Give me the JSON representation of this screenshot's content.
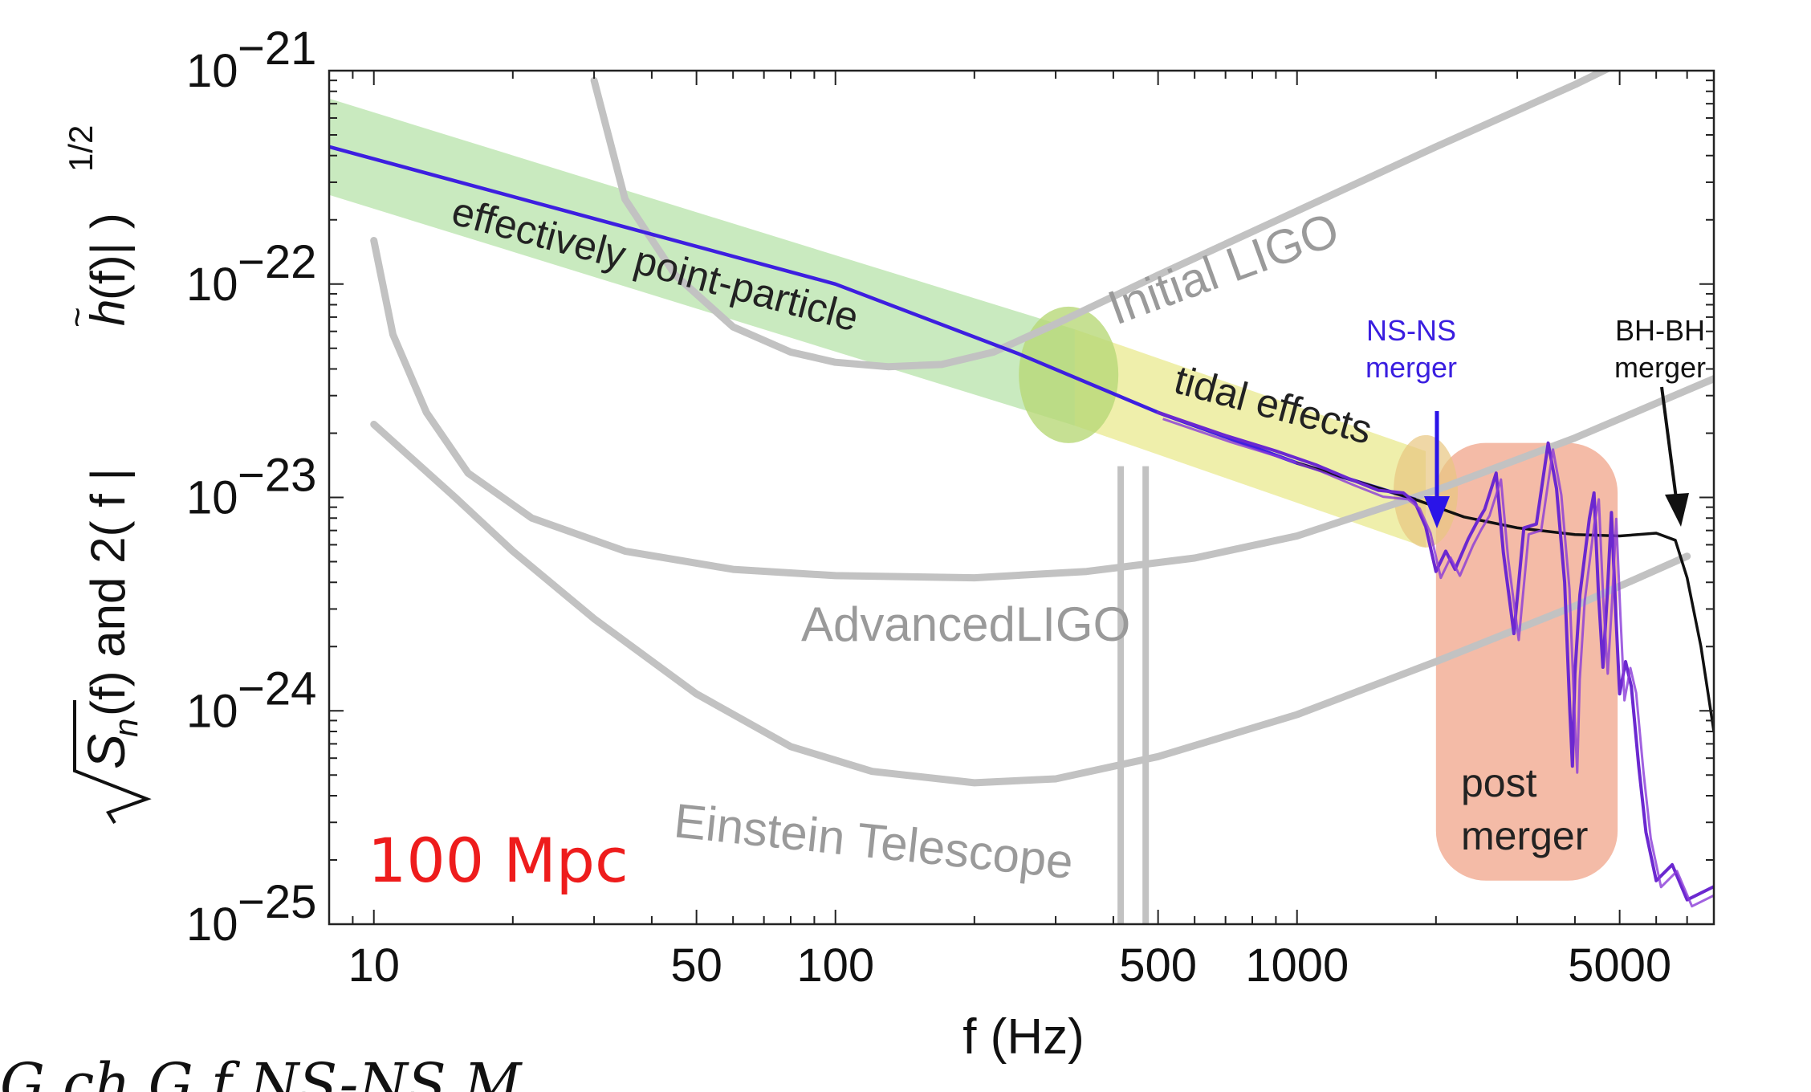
{
  "chart_data": {
    "type": "line",
    "xscale": "log",
    "yscale": "log",
    "xlim": [
      8,
      8000
    ],
    "ylim": [
      1e-25,
      1e-21
    ],
    "xticks": [
      {
        "value": 10,
        "label": "10"
      },
      {
        "value": 50,
        "label": "50"
      },
      {
        "value": 100,
        "label": "100"
      },
      {
        "value": 500,
        "label": "500"
      },
      {
        "value": 1000,
        "label": "1000"
      },
      {
        "value": 5000,
        "label": "5000"
      }
    ],
    "yticks": [
      {
        "value": 1e-25,
        "base": "10",
        "exp": "−25"
      },
      {
        "value": 1e-24,
        "base": "10",
        "exp": "−24"
      },
      {
        "value": 1e-23,
        "base": "10",
        "exp": "−23"
      },
      {
        "value": 1e-22,
        "base": "10",
        "exp": "−22"
      },
      {
        "value": 1e-21,
        "base": "10",
        "exp": "−21"
      }
    ],
    "xlabel": "f (Hz)",
    "ylabel": {
      "pre": "S",
      "sub": "n",
      "mid": "(f)  and  2( f |",
      "htilde": "h",
      "post": "(f)| )",
      "sup": "1/2"
    },
    "series": [
      {
        "name": "Initial LIGO",
        "color": "#c2c2c2",
        "points": [
          [
            30,
            9e-22
          ],
          [
            35,
            2.5e-22
          ],
          [
            45,
            1.1e-22
          ],
          [
            60,
            6.3e-23
          ],
          [
            80,
            4.8e-23
          ],
          [
            100,
            4.3e-23
          ],
          [
            130,
            4.1e-23
          ],
          [
            170,
            4.2e-23
          ],
          [
            220,
            4.8e-23
          ],
          [
            300,
            6.5e-23
          ],
          [
            500,
            1.1e-22
          ],
          [
            1000,
            2.2e-22
          ],
          [
            2000,
            4.4e-22
          ],
          [
            4000,
            8.6e-22
          ],
          [
            7200,
            1.6e-21
          ]
        ]
      },
      {
        "name": "AdvancedLIGO",
        "color": "#c2c2c2",
        "points": [
          [
            10,
            1.6e-22
          ],
          [
            11,
            5.8e-23
          ],
          [
            13,
            2.5e-23
          ],
          [
            16,
            1.3e-23
          ],
          [
            22,
            8e-24
          ],
          [
            35,
            5.6e-24
          ],
          [
            60,
            4.6e-24
          ],
          [
            100,
            4.3e-24
          ],
          [
            200,
            4.2e-24
          ],
          [
            350,
            4.5e-24
          ],
          [
            600,
            5.2e-24
          ],
          [
            1000,
            6.6e-24
          ],
          [
            2000,
            1.08e-23
          ],
          [
            4000,
            1.9e-23
          ],
          [
            8000,
            3.6e-23
          ]
        ]
      },
      {
        "name": "Einstein Telescope",
        "color": "#c2c2c2",
        "points": [
          [
            10,
            2.2e-23
          ],
          [
            15,
            1e-23
          ],
          [
            20,
            5.6e-24
          ],
          [
            30,
            2.7e-24
          ],
          [
            50,
            1.2e-24
          ],
          [
            80,
            6.8e-25
          ],
          [
            120,
            5.2e-25
          ],
          [
            200,
            4.6e-25
          ],
          [
            300,
            4.8e-25
          ],
          [
            500,
            6.1e-25
          ],
          [
            1000,
            9.6e-25
          ],
          [
            2000,
            1.7e-24
          ],
          [
            4000,
            3.1e-24
          ],
          [
            7000,
            5.3e-24
          ]
        ]
      },
      {
        "name": "point-particle",
        "color": "#3d1fe0",
        "points": [
          [
            8,
            4.4e-22
          ],
          [
            100,
            1e-22
          ],
          [
            250,
            4.7e-23
          ],
          [
            500,
            2.5e-23
          ],
          [
            1000,
            1.45e-23
          ],
          [
            1800,
            9.8e-24
          ]
        ]
      },
      {
        "name": "BH-BH",
        "color": "#111111",
        "points": [
          [
            1000,
            1.45e-23
          ],
          [
            1800,
            9.8e-24
          ],
          [
            2300,
            8.1e-24
          ],
          [
            3000,
            7.2e-24
          ],
          [
            4000,
            6.7e-24
          ],
          [
            5000,
            6.6e-24
          ],
          [
            6000,
            6.8e-24
          ],
          [
            6600,
            6.3e-24
          ],
          [
            7000,
            4.2e-24
          ],
          [
            7500,
            2e-24
          ],
          [
            8000,
            8e-25
          ]
        ]
      },
      {
        "name": "NS-NS",
        "color": "#6b28d0",
        "points": [
          [
            500,
            2.5e-23
          ],
          [
            700,
            1.95e-23
          ],
          [
            900,
            1.65e-23
          ],
          [
            1100,
            1.42e-23
          ],
          [
            1300,
            1.22e-23
          ],
          [
            1500,
            1.08e-23
          ],
          [
            1700,
            1.05e-23
          ],
          [
            1800,
            9.5e-24
          ],
          [
            1900,
            7.3e-24
          ],
          [
            2000,
            4.5e-24
          ],
          [
            2100,
            5.6e-24
          ],
          [
            2200,
            4.6e-24
          ],
          [
            2350,
            6.4e-24
          ],
          [
            2450,
            7.6e-24
          ],
          [
            2550,
            8.8e-24
          ],
          [
            2700,
            1.3e-23
          ],
          [
            2800,
            5.5e-24
          ],
          [
            2950,
            2.3e-24
          ],
          [
            3100,
            7.2e-24
          ],
          [
            3300,
            7.5e-24
          ],
          [
            3500,
            1.8e-23
          ],
          [
            3650,
            1.1e-23
          ],
          [
            3800,
            4e-24
          ],
          [
            3900,
            1e-24
          ],
          [
            3950,
            5.5e-25
          ],
          [
            4000,
            1.5e-24
          ],
          [
            4100,
            3.5e-24
          ],
          [
            4300,
            8e-24
          ],
          [
            4400,
            1.05e-23
          ],
          [
            4500,
            3.5e-24
          ],
          [
            4600,
            1.6e-24
          ],
          [
            4700,
            3.5e-24
          ],
          [
            4800,
            8.5e-24
          ],
          [
            4900,
            3e-24
          ],
          [
            5000,
            1.2e-24
          ],
          [
            5150,
            1.7e-24
          ],
          [
            5300,
            1.3e-24
          ],
          [
            5500,
            5.5e-25
          ],
          [
            5700,
            2.7e-25
          ],
          [
            6000,
            1.6e-25
          ],
          [
            6500,
            1.9e-25
          ],
          [
            7000,
            1.3e-25
          ],
          [
            8000,
            1.5e-25
          ]
        ]
      }
    ],
    "annotations": {
      "distance": "100 Mpc",
      "point_particle": "effectively point-particle",
      "tidal": "tidal effects",
      "ns_ns": [
        "NS-NS",
        "merger"
      ],
      "bh_bh": [
        "BH-BH",
        "merger"
      ],
      "post_merger": [
        "post",
        "merger"
      ],
      "initial_ligo": "Initial LIGO",
      "advanced_ligo": "AdvancedLIGO",
      "einstein": "Einstein Telescope"
    },
    "colors": {
      "green_band": "#bfe6b4",
      "yellow_band": "#ecec9c",
      "post_merger_box": "#f0a48a",
      "detector_curves": "#c2c2c2",
      "distance_label": "#ee1c1c",
      "ns_ns_label": "#3a1ee0"
    },
    "grid": false
  },
  "caption": "G ch     G  f      NS-NS                     M"
}
